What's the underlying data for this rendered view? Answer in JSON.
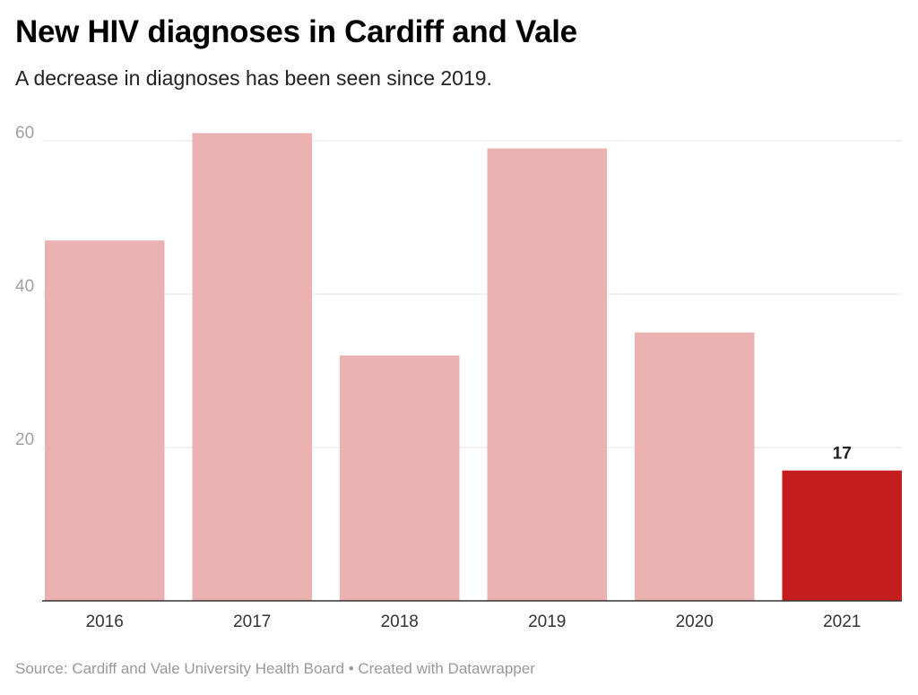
{
  "header": {
    "title": "New HIV diagnoses in Cardiff and Vale",
    "subtitle": "A decrease in diagnoses has been seen since 2019."
  },
  "footer": {
    "source_label": "Source:",
    "source": "Cardiff and Vale University Health Board",
    "separator": "•",
    "credit": "Created with Datawrapper"
  },
  "chart_data": {
    "type": "bar",
    "title": "New HIV diagnoses in Cardiff and Vale",
    "subtitle": "A decrease in diagnoses has been seen since 2019.",
    "xlabel": "",
    "ylabel": "",
    "categories": [
      "2016",
      "2017",
      "2018",
      "2019",
      "2020",
      "2021"
    ],
    "values": [
      47,
      61,
      32,
      59,
      35,
      17
    ],
    "ylim": [
      0,
      60
    ],
    "yticks": [
      20,
      40,
      60
    ],
    "grid": true,
    "legend": "none",
    "data_labels": [
      {
        "category": "2021",
        "text": "17"
      }
    ],
    "colors": {
      "default_bar": "#ebb0b0",
      "highlight_bar": "#c51d1d",
      "highlight_category": "2021",
      "gridline": "#e3e3e3",
      "baseline": "#333333"
    }
  }
}
